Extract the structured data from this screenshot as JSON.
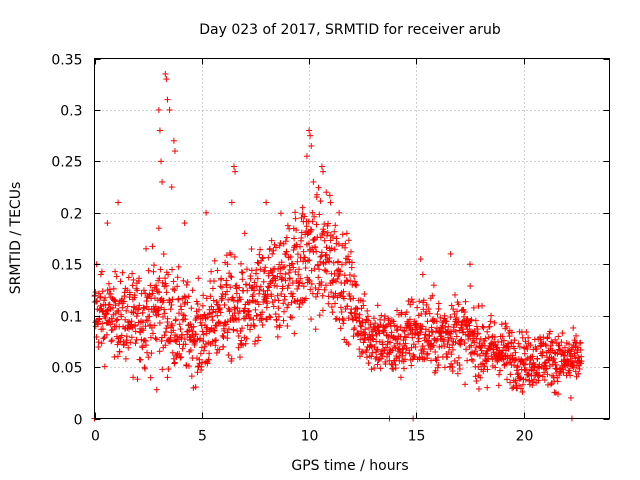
{
  "chart_data": {
    "type": "scatter",
    "title": "Day 023 of 2017, SRMTID for receiver arub",
    "xlabel": "GPS time / hours",
    "ylabel": "SRMTID / TECUs",
    "xlim": [
      0,
      24
    ],
    "ylim": [
      0,
      0.35
    ],
    "xticks": [
      0,
      5,
      10,
      15,
      20
    ],
    "xtick_labels": [
      "0",
      "5",
      "10",
      "15",
      "20"
    ],
    "yticks": [
      0,
      0.05,
      0.1,
      0.15,
      0.2,
      0.25,
      0.3,
      0.35
    ],
    "ytick_labels": [
      "0",
      "0.05",
      "0.1",
      "0.15",
      "0.2",
      "0.25",
      "0.3",
      "0.35"
    ],
    "grid": true,
    "marker": "+",
    "color": "#ff0000",
    "trend": [
      [
        0.0,
        0.1,
        0.025
      ],
      [
        1.0,
        0.1,
        0.025
      ],
      [
        2.0,
        0.095,
        0.03
      ],
      [
        3.0,
        0.11,
        0.035
      ],
      [
        4.0,
        0.09,
        0.03
      ],
      [
        5.0,
        0.08,
        0.028
      ],
      [
        6.0,
        0.11,
        0.035
      ],
      [
        7.0,
        0.1,
        0.03
      ],
      [
        8.0,
        0.12,
        0.035
      ],
      [
        9.0,
        0.14,
        0.035
      ],
      [
        10.0,
        0.16,
        0.04
      ],
      [
        11.0,
        0.15,
        0.04
      ],
      [
        11.8,
        0.13,
        0.03
      ],
      [
        12.5,
        0.085,
        0.022
      ],
      [
        14.0,
        0.07,
        0.022
      ],
      [
        15.0,
        0.085,
        0.025
      ],
      [
        16.0,
        0.08,
        0.025
      ],
      [
        17.0,
        0.085,
        0.025
      ],
      [
        18.0,
        0.07,
        0.022
      ],
      [
        19.0,
        0.065,
        0.02
      ],
      [
        20.0,
        0.055,
        0.018
      ],
      [
        21.0,
        0.06,
        0.018
      ],
      [
        22.0,
        0.055,
        0.018
      ],
      [
        22.7,
        0.06,
        0.015
      ]
    ],
    "peaks": [
      [
        3.0,
        0.3
      ],
      [
        3.05,
        0.28
      ],
      [
        3.1,
        0.25
      ],
      [
        3.15,
        0.23
      ],
      [
        3.3,
        0.335
      ],
      [
        3.35,
        0.33
      ],
      [
        3.4,
        0.31
      ],
      [
        3.5,
        0.3
      ],
      [
        3.7,
        0.27
      ],
      [
        3.75,
        0.26
      ],
      [
        3.6,
        0.225
      ],
      [
        3.0,
        0.185
      ],
      [
        2.4,
        0.165
      ],
      [
        6.5,
        0.245
      ],
      [
        6.55,
        0.24
      ],
      [
        6.4,
        0.21
      ],
      [
        5.2,
        0.2
      ],
      [
        7.0,
        0.18
      ],
      [
        8.0,
        0.21
      ],
      [
        10.0,
        0.28
      ],
      [
        10.05,
        0.275
      ],
      [
        10.1,
        0.265
      ],
      [
        9.9,
        0.255
      ],
      [
        10.6,
        0.245
      ],
      [
        10.65,
        0.24
      ],
      [
        10.2,
        0.23
      ],
      [
        10.8,
        0.22
      ],
      [
        11.0,
        0.21
      ],
      [
        11.4,
        0.2
      ],
      [
        16.6,
        0.16
      ],
      [
        15.2,
        0.155
      ],
      [
        17.5,
        0.15
      ],
      [
        1.1,
        0.21
      ],
      [
        0.6,
        0.19
      ],
      [
        4.2,
        0.19
      ],
      [
        9.3,
        0.175
      ],
      [
        9.7,
        0.205
      ],
      [
        2.9,
        0.028
      ],
      [
        3.4,
        0.04
      ],
      [
        4.8,
        0.045
      ],
      [
        18.3,
        0.03
      ],
      [
        21.5,
        0.025
      ],
      [
        22.2,
        0.02
      ],
      [
        0.1,
        0.15
      ],
      [
        0.3,
        0.14
      ],
      [
        1.8,
        0.04
      ],
      [
        6.2,
        0.15
      ],
      [
        13.2,
        0.11
      ],
      [
        14.1,
        0.105
      ],
      [
        15.3,
        0.14
      ]
    ],
    "baseline_points": [
      [
        0.0,
        0.0
      ],
      [
        13.75,
        0.0
      ],
      [
        14.85,
        0.0
      ],
      [
        22.25,
        0.0
      ]
    ]
  }
}
